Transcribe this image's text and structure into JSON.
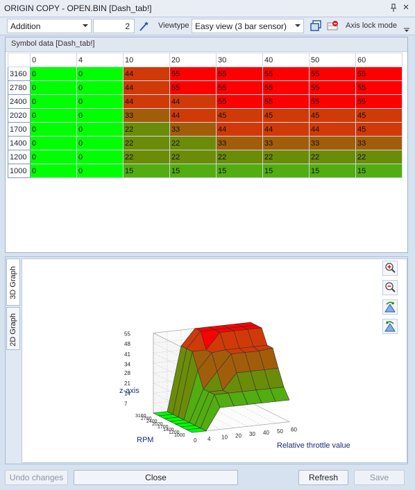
{
  "window": {
    "title": "ORIGIN COPY - OPEN.BIN [Dash_tab!]",
    "pin_glyph": "📌",
    "close_glyph": "×"
  },
  "toolbar": {
    "operation": "Addition",
    "amount": "2",
    "viewtype_label": "Viewtype",
    "viewtype_value": "Easy view (3 bar sensor)",
    "axis_lock_label": "Axis lock mode"
  },
  "grid": {
    "header": "Symbol data [Dash_tab!]",
    "columns": [
      "0",
      "4",
      "10",
      "20",
      "30",
      "40",
      "50",
      "60"
    ],
    "rows": [
      {
        "label": "3160",
        "values": [
          "0",
          "0",
          "44",
          "55",
          "55",
          "55",
          "55",
          "55"
        ]
      },
      {
        "label": "2780",
        "values": [
          "0",
          "0",
          "44",
          "55",
          "55",
          "55",
          "55",
          "55"
        ]
      },
      {
        "label": "2400",
        "values": [
          "0",
          "0",
          "44",
          "44",
          "55",
          "55",
          "55",
          "55"
        ]
      },
      {
        "label": "2020",
        "values": [
          "0",
          "0",
          "33",
          "44",
          "45",
          "45",
          "45",
          "45"
        ]
      },
      {
        "label": "1700",
        "values": [
          "0",
          "0",
          "22",
          "33",
          "44",
          "44",
          "44",
          "45"
        ]
      },
      {
        "label": "1400",
        "values": [
          "0",
          "0",
          "22",
          "22",
          "33",
          "33",
          "33",
          "33"
        ]
      },
      {
        "label": "1200",
        "values": [
          "0",
          "0",
          "22",
          "22",
          "22",
          "22",
          "22",
          "22"
        ]
      },
      {
        "label": "1000",
        "values": [
          "0",
          "0",
          "15",
          "15",
          "15",
          "15",
          "15",
          "15"
        ]
      }
    ]
  },
  "graph": {
    "tabs": [
      "3D Graph",
      "2D Graph"
    ],
    "z_axis_label": "z-axis",
    "x_axis_label": "Relative throttle value",
    "y_axis_label": "RPM",
    "z_ticks": [
      "55",
      "48",
      "41",
      "34",
      "28",
      "21",
      "14",
      "7"
    ],
    "x_ticks": [
      "0",
      "4",
      "10",
      "20",
      "30",
      "40",
      "50",
      "60"
    ],
    "y_ticks": [
      "3160",
      "2780",
      "2400",
      "2020",
      "1700",
      "1400",
      "1200",
      "1000"
    ],
    "tools": [
      "zoom-in-icon",
      "zoom-out-icon",
      "rotate-left-icon",
      "rotate-right-icon"
    ]
  },
  "buttons": {
    "undo": "Undo changes",
    "close": "Close",
    "refresh": "Refresh",
    "save": "Save"
  },
  "colors": {
    "high": "#ff0000",
    "mid_high": "#d03a08",
    "mid": "#a25d0b",
    "mid_low": "#6b8c09",
    "low": "#52ad10",
    "zero": "#00ff00"
  }
}
